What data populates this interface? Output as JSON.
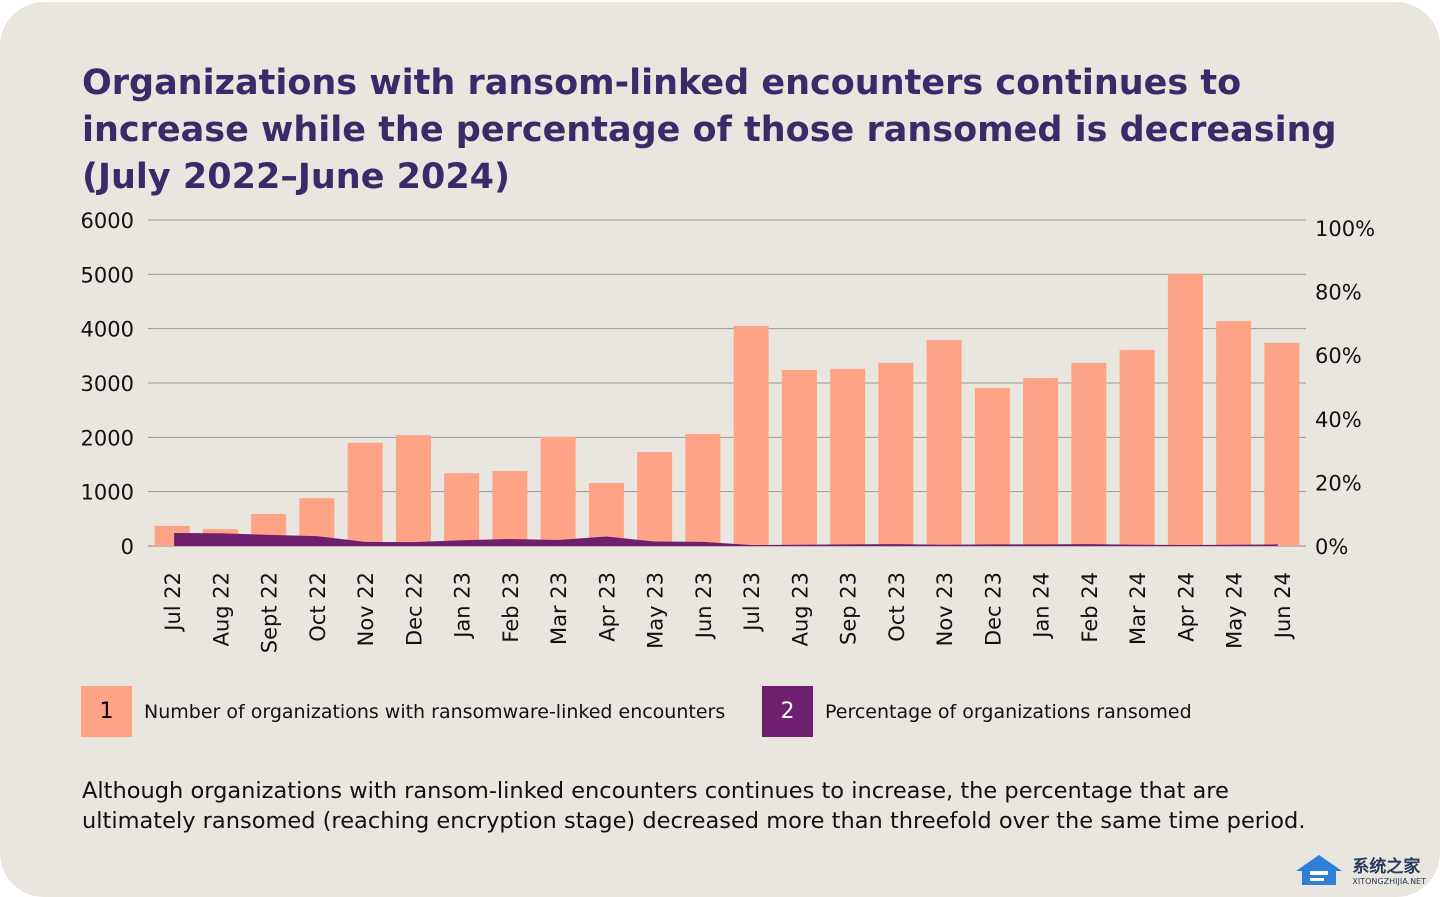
{
  "title": "Organizations with ransom-linked encounters continues to increase while the percentage of those ransomed is decreasing (July 2022–June 2024)",
  "chart_data": {
    "type": "bar",
    "categories": [
      "Jul 22",
      "Aug 22",
      "Sept 22",
      "Oct 22",
      "Nov 22",
      "Dec 22",
      "Jan 23",
      "Feb 23",
      "Mar 23",
      "Apr 23",
      "May 23",
      "Jun 23",
      "Jul 23",
      "Aug 23",
      "Sep 23",
      "Oct 23",
      "Nov 23",
      "Dec 23",
      "Jan 24",
      "Feb 24",
      "Mar 24",
      "Apr 24",
      "May 24",
      "Jun 24"
    ],
    "series": [
      {
        "name": "Number of organizations with ransomware-linked encounters",
        "type": "bar",
        "axis": "left",
        "color": "#ffa387",
        "values": [
          370,
          310,
          590,
          880,
          1900,
          2040,
          1340,
          1380,
          2010,
          1160,
          1730,
          2060,
          4050,
          3240,
          3260,
          3370,
          3790,
          2910,
          3090,
          3370,
          3610,
          5010,
          4140,
          3740
        ]
      },
      {
        "name": "Percentage of organizations ransomed",
        "type": "area",
        "axis": "right",
        "color": "#6e206e",
        "values": [
          4.1,
          4.0,
          3.5,
          3.1,
          1.3,
          1.2,
          1.8,
          2.2,
          1.9,
          3.0,
          1.4,
          1.3,
          0.3,
          0.4,
          0.5,
          0.6,
          0.4,
          0.5,
          0.5,
          0.6,
          0.4,
          0.3,
          0.4,
          0.5
        ]
      }
    ],
    "left_axis": {
      "range": [
        0,
        6000
      ],
      "ticks": [
        "0",
        "1000",
        "2000",
        "3000",
        "4000",
        "5000",
        "6000"
      ]
    },
    "right_axis": {
      "range": [
        0,
        100
      ],
      "ticks": [
        "0%",
        "20%",
        "40%",
        "60%",
        "80%",
        "100%"
      ]
    },
    "grid": true,
    "legend_placement": "bottom"
  },
  "legend": [
    {
      "number": "1",
      "label": "Number of organizations with ransomware-linked encounters",
      "color": "#ffa387"
    },
    {
      "number": "2",
      "label": "Percentage of organizations ransomed",
      "color": "#6e206e"
    }
  ],
  "note": "Although organizations with ransom-linked encounters continues to increase, the percentage that are ultimately ransomed (reaching encryption stage) decreased more than threefold over the same time period.",
  "watermark": {
    "cn": "系统之家",
    "en": "XITONGZHIJIA.NET"
  }
}
